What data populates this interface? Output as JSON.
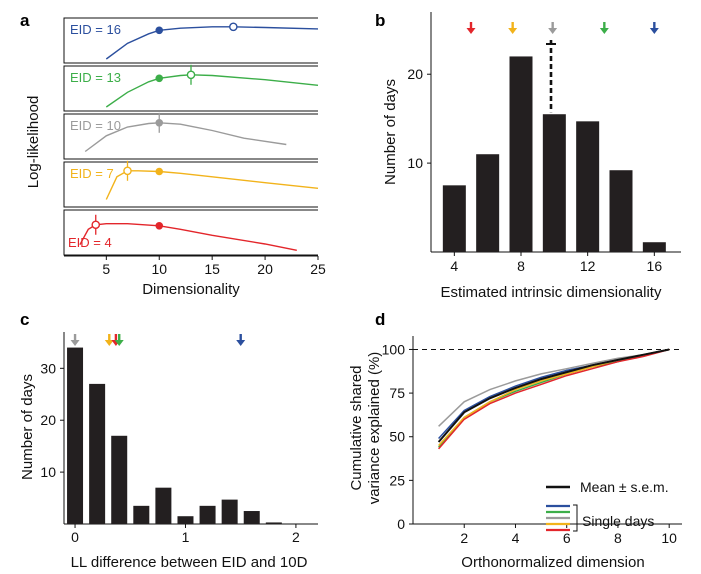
{
  "panel_labels": {
    "a": "a",
    "b": "b",
    "c": "c",
    "d": "d"
  },
  "colors": {
    "blue": "#2b4f9e",
    "green": "#3cae49",
    "gray": "#9b9b9b",
    "yellow": "#f2b31b",
    "red": "#e3262b",
    "bar": "#231f20"
  },
  "chart_data": [
    {
      "id": "a",
      "type": "line",
      "xlabel": "Dimensionality",
      "ylabel": "Log-likelihood",
      "xlim": [
        1,
        25
      ],
      "xticks": [
        "5",
        "10",
        "15",
        "20",
        "25"
      ],
      "series": [
        {
          "name": "EID = 16",
          "color": "#2b4f9e",
          "x": [
            5,
            7,
            9,
            10,
            12,
            15,
            17,
            20,
            25
          ],
          "y": [
            0.0,
            0.45,
            0.72,
            0.82,
            0.88,
            0.92,
            0.92,
            0.9,
            0.86
          ],
          "filled_marker_x": 10,
          "open_marker_x": 17,
          "error_bar_x": null
        },
        {
          "name": "EID = 13",
          "color": "#3cae49",
          "x": [
            5,
            7,
            9,
            10,
            12,
            13,
            15,
            20,
            25
          ],
          "y": [
            0.0,
            0.42,
            0.72,
            0.82,
            0.9,
            0.92,
            0.9,
            0.78,
            0.62
          ],
          "filled_marker_x": 10,
          "open_marker_x": 13,
          "error_bar_x": 13
        },
        {
          "name": "EID = 10",
          "color": "#9b9b9b",
          "x": [
            3,
            5,
            7,
            9,
            10,
            12,
            15,
            18,
            22
          ],
          "y": [
            0.1,
            0.55,
            0.8,
            0.9,
            0.92,
            0.88,
            0.7,
            0.48,
            0.3
          ],
          "filled_marker_x": 10,
          "open_marker_x": null,
          "error_bar_x": 10
        },
        {
          "name": "EID = 7",
          "color": "#f2b31b",
          "x": [
            5,
            6,
            7,
            8,
            10,
            12,
            15,
            20,
            25
          ],
          "y": [
            0.1,
            0.75,
            0.92,
            0.92,
            0.9,
            0.85,
            0.75,
            0.58,
            0.42
          ],
          "filled_marker_x": 10,
          "open_marker_x": 7,
          "error_bar_x": 7
        },
        {
          "name": "EID = 4",
          "color": "#e3262b",
          "x": [
            2.5,
            3.3,
            4,
            5,
            7,
            10,
            12,
            15,
            20,
            23
          ],
          "y": [
            0.18,
            0.62,
            0.75,
            0.78,
            0.78,
            0.72,
            0.62,
            0.45,
            0.2,
            0.02
          ],
          "filled_marker_x": 10,
          "open_marker_x": 4,
          "error_bar_x": 4
        }
      ]
    },
    {
      "id": "b",
      "type": "bar",
      "xlabel": "Estimated intrinsic dimensionality",
      "ylabel": "Number of days",
      "xlim": [
        2.6,
        17.6
      ],
      "ylim": [
        0,
        27
      ],
      "xticks": [
        "4",
        "8",
        "12",
        "16"
      ],
      "yticks": [
        "10",
        "20"
      ],
      "categories": [
        "4",
        "6",
        "8",
        "10",
        "12",
        "14",
        "16"
      ],
      "values": [
        7.5,
        11,
        22,
        15.5,
        14.7,
        9.2,
        1.1
      ],
      "mean_marker": 9.8,
      "arrows": [
        {
          "x": 5,
          "color": "#e3262b"
        },
        {
          "x": 7.5,
          "color": "#f2b31b"
        },
        {
          "x": 9.9,
          "color": "#9b9b9b"
        },
        {
          "x": 13,
          "color": "#3cae49"
        },
        {
          "x": 16,
          "color": "#2b4f9e"
        }
      ]
    },
    {
      "id": "c",
      "type": "bar",
      "xlabel": "LL difference between EID and 10D",
      "ylabel": "Number of days",
      "xlim": [
        -0.1,
        2.2
      ],
      "ylim": [
        0,
        37
      ],
      "xticks": [
        "0",
        "1",
        "2"
      ],
      "yticks": [
        "10",
        "20",
        "30"
      ],
      "categories": [
        "0",
        "0.2",
        "0.4",
        "0.6",
        "0.8",
        "1.0",
        "1.2",
        "1.4",
        "1.6",
        "1.8"
      ],
      "values": [
        34,
        27,
        17,
        3.5,
        7,
        1.5,
        3.5,
        4.7,
        2.5,
        0.3
      ],
      "arrows": [
        {
          "x": 0.0,
          "color": "#9b9b9b"
        },
        {
          "x": 0.31,
          "color": "#f2b31b"
        },
        {
          "x": 0.37,
          "color": "#e3262b"
        },
        {
          "x": 0.4,
          "color": "#3cae49"
        },
        {
          "x": 1.5,
          "color": "#2b4f9e"
        }
      ]
    },
    {
      "id": "d",
      "type": "line",
      "xlabel": "Orthonormalized dimension",
      "ylabel": "Cumulative shared variance explained (%)",
      "xlim": [
        0,
        10.5
      ],
      "ylim": [
        0,
        110
      ],
      "xticks": [
        "2",
        "4",
        "6",
        "8",
        "10"
      ],
      "yticks": [
        "0",
        "25",
        "50",
        "75",
        "100"
      ],
      "reference_line": 100,
      "x": [
        1,
        2,
        3,
        4,
        5,
        6,
        7,
        8,
        9,
        10
      ],
      "series": [
        {
          "name": "Mean ± s.e.m.",
          "color": "#111111",
          "values": [
            47,
            64,
            72,
            78,
            83,
            87,
            91,
            94,
            97,
            100
          ]
        },
        {
          "name": "blue",
          "color": "#2b4f9e",
          "values": [
            49,
            65,
            73,
            79,
            84,
            88,
            91,
            94,
            97,
            100
          ]
        },
        {
          "name": "green",
          "color": "#3cae49",
          "values": [
            44,
            61,
            70,
            76,
            81,
            86,
            90,
            93,
            97,
            100
          ]
        },
        {
          "name": "gray",
          "color": "#9b9b9b",
          "values": [
            56,
            70,
            77,
            82,
            86,
            89,
            92,
            95,
            97,
            100
          ]
        },
        {
          "name": "yellow",
          "color": "#f2b31b",
          "values": [
            45,
            61,
            70,
            77,
            82,
            86,
            90,
            94,
            97,
            100
          ]
        },
        {
          "name": "red",
          "color": "#e3262b",
          "values": [
            43,
            60,
            69,
            75,
            80,
            85,
            89,
            93,
            96,
            100
          ]
        }
      ],
      "legend": {
        "mean_label": "Mean ± s.e.m.",
        "single_label": "Single days",
        "position": "bottom-right"
      }
    }
  ]
}
